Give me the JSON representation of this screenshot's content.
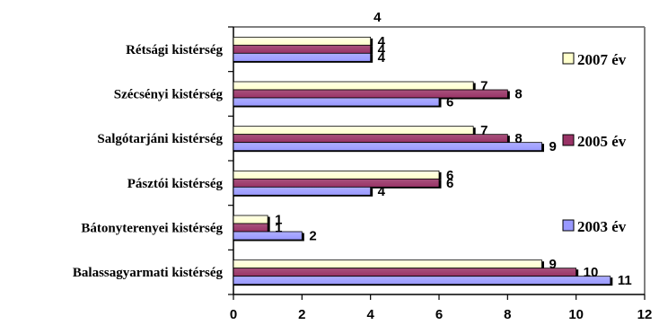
{
  "chart_data": {
    "type": "bar",
    "orientation": "horizontal",
    "categories": [
      "Balassagyarmati kistérség",
      "Bátonyterenyei kistérség",
      "Pásztói kistérség",
      "Salgótarjáni kistérség",
      "Szécsényi kistérség",
      "Rétsági kistérség"
    ],
    "series": [
      {
        "name": "2007 év",
        "color": "#ffffcc",
        "values": [
          9,
          1,
          6,
          7,
          7,
          4
        ]
      },
      {
        "name": "2005 év",
        "color": "#993366",
        "values": [
          10,
          1,
          6,
          8,
          8,
          4
        ]
      },
      {
        "name": "2003 év",
        "color": "#9999ff",
        "values": [
          11,
          2,
          4,
          9,
          6,
          4
        ]
      }
    ],
    "top_label": "4",
    "xlim": [
      0,
      12
    ],
    "xticks": [
      "0",
      "2",
      "4",
      "6",
      "8",
      "10",
      "12"
    ],
    "grid": false,
    "legend_position": "right"
  }
}
